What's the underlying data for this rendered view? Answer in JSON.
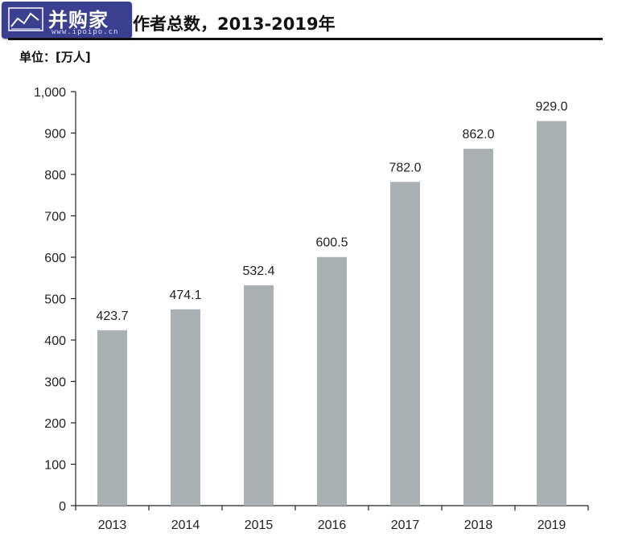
{
  "watermark": {
    "brand": "并购家",
    "url": "www.ipoipo.cn"
  },
  "header": {
    "title": "作者总数，2013-2019年",
    "unit": "单位：[万人]"
  },
  "chart_data": {
    "type": "bar",
    "categories": [
      "2013",
      "2014",
      "2015",
      "2016",
      "2017",
      "2018",
      "2019"
    ],
    "values": [
      423.7,
      474.1,
      532.4,
      600.5,
      782.0,
      862.0,
      929.0
    ],
    "value_labels": [
      "423.7",
      "474.1",
      "532.4",
      "600.5",
      "782.0",
      "862.0",
      "929.0"
    ],
    "ylim": [
      0,
      1000
    ],
    "yticks": [
      0,
      100,
      200,
      300,
      400,
      500,
      600,
      700,
      800,
      900,
      1000
    ],
    "ytick_labels": [
      "0",
      "100",
      "200",
      "300",
      "400",
      "500",
      "600",
      "700",
      "800",
      "900",
      "1,000"
    ],
    "bar_color": "#abb1b3",
    "grid": false
  }
}
